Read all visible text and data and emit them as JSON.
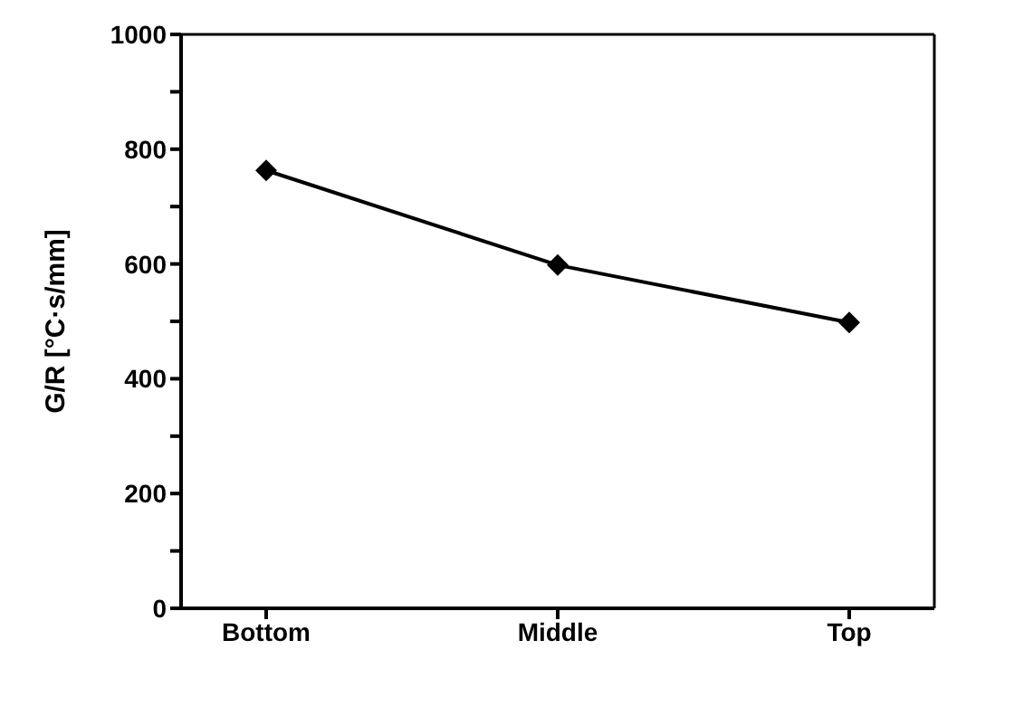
{
  "chart_data": {
    "type": "line",
    "ylabel": "G/R [°C·s/mm]",
    "categories": [
      "Bottom",
      "Middle",
      "Top"
    ],
    "series": [
      {
        "color": "#000000",
        "values": [
          763,
          598,
          498
        ]
      }
    ],
    "ylim": [
      0,
      1000
    ],
    "yticks": [
      0,
      {
        "value": 100,
        "label": null
      },
      200,
      {
        "value": 300,
        "label": null
      },
      400,
      {
        "value": 500,
        "label": null
      },
      600,
      {
        "value": 700,
        "label": null
      },
      800,
      {
        "value": 900,
        "label": null
      },
      1000
    ],
    "marker": "diamond",
    "line_style": "solid",
    "grid": false,
    "legend": false
  }
}
